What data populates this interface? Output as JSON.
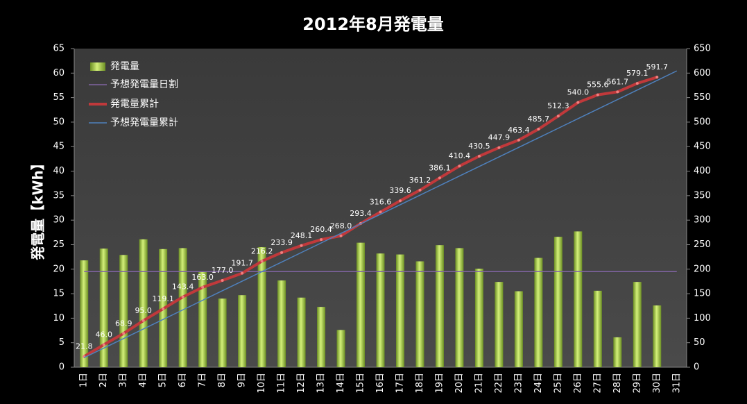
{
  "chart_data": {
    "type": "bar",
    "title": "2012年8月発電量",
    "y_label": "発電量【kWh】",
    "categories": [
      "1日",
      "2日",
      "3日",
      "4日",
      "5日",
      "6日",
      "7日",
      "8日",
      "9日",
      "10日",
      "11日",
      "12日",
      "13日",
      "14日",
      "15日",
      "16日",
      "17日",
      "18日",
      "19日",
      "20日",
      "21日",
      "22日",
      "23日",
      "24日",
      "25日",
      "26日",
      "27日",
      "28日",
      "29日",
      "30日",
      "31日"
    ],
    "series": [
      {
        "name": "発電量",
        "type": "bar",
        "color": "#9acd32",
        "axis": "y",
        "values": [
          21.8,
          24.2,
          22.9,
          26.1,
          24.1,
          24.3,
          19.6,
          14.0,
          14.7,
          24.5,
          17.7,
          14.2,
          12.3,
          7.6,
          25.4,
          23.2,
          23.0,
          21.6,
          24.9,
          24.3,
          20.1,
          17.4,
          15.5,
          22.3,
          26.6,
          27.7,
          15.6,
          6.1,
          17.4,
          12.6,
          null
        ]
      },
      {
        "name": "予想発電量日割",
        "type": "line",
        "color": "#8064a2",
        "axis": "y",
        "values": [
          19.5,
          19.5,
          19.5,
          19.5,
          19.5,
          19.5,
          19.5,
          19.5,
          19.5,
          19.5,
          19.5,
          19.5,
          19.5,
          19.5,
          19.5,
          19.5,
          19.5,
          19.5,
          19.5,
          19.5,
          19.5,
          19.5,
          19.5,
          19.5,
          19.5,
          19.5,
          19.5,
          19.5,
          19.5,
          19.5,
          19.5
        ]
      },
      {
        "name": "発電量累計",
        "type": "line",
        "color": "#c0393b",
        "axis": "y2",
        "values": [
          21.8,
          46.0,
          68.9,
          95.0,
          119.1,
          143.4,
          163.0,
          177.0,
          191.7,
          216.2,
          233.9,
          248.1,
          260.4,
          268.0,
          293.4,
          316.6,
          339.6,
          361.2,
          386.1,
          410.4,
          430.5,
          447.9,
          463.4,
          485.7,
          512.3,
          540.0,
          555.6,
          561.7,
          579.1,
          591.7,
          null
        ],
        "value_labels": [
          "21.8",
          "46.0",
          "68.9",
          "95.0",
          "119.1",
          "143.4",
          "163.0",
          "177.0",
          "191.7",
          "216.2",
          "233.9",
          "248.1",
          "260.4",
          "268.0",
          "293.4",
          "316.6",
          "339.6",
          "361.2",
          "386.1",
          "410.4",
          "430.5",
          "447.9",
          "463.4",
          "485.7",
          "512.3",
          "540.0",
          "555.6",
          "561.7",
          "579.1",
          "591.7",
          null
        ]
      },
      {
        "name": "予想発電量累計",
        "type": "line",
        "color": "#4f81bd",
        "axis": "y2",
        "values": [
          19.5,
          39.0,
          58.5,
          78.0,
          97.5,
          117.0,
          136.5,
          156.0,
          175.5,
          195.0,
          214.5,
          234.0,
          253.5,
          273.0,
          292.5,
          312.0,
          331.5,
          351.0,
          370.5,
          390.0,
          409.5,
          429.0,
          448.5,
          468.0,
          487.5,
          507.0,
          526.5,
          546.0,
          565.5,
          585.0,
          604.5
        ]
      }
    ],
    "ylim": [
      0,
      65
    ],
    "yticks": [
      0,
      5,
      10,
      15,
      20,
      25,
      30,
      35,
      40,
      45,
      50,
      55,
      60,
      65
    ],
    "y2lim": [
      0,
      650
    ],
    "y2ticks": [
      0,
      50,
      100,
      150,
      200,
      250,
      300,
      350,
      400,
      450,
      500,
      550,
      600,
      650
    ],
    "grid": false,
    "legend": "upper left"
  }
}
